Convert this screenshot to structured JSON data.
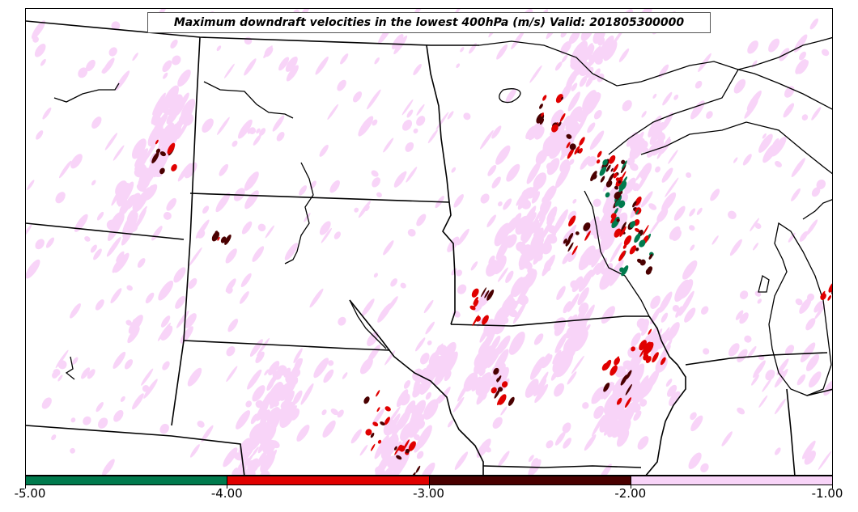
{
  "title": "Maximum downdraft velocities in the lowest 400hPa (m/s) Valid: 201805300000",
  "colorbar": {
    "ticks": [
      "-5.00",
      "-4.00",
      "-3.00",
      "-2.00",
      "-1.00"
    ],
    "bins": [
      {
        "range": [
          -5,
          -4
        ],
        "color": "#007a4d"
      },
      {
        "range": [
          -4,
          -3
        ],
        "color": "#e00000"
      },
      {
        "range": [
          -3,
          -2
        ],
        "color": "#4a0000"
      },
      {
        "range": [
          -2,
          -1
        ],
        "color": "#f8d4f8"
      }
    ]
  },
  "colors": {
    "light": "#f8d4f8",
    "red": "#e00000",
    "dark": "#4a0000",
    "green": "#007a4d",
    "boundary": "#000000"
  }
}
